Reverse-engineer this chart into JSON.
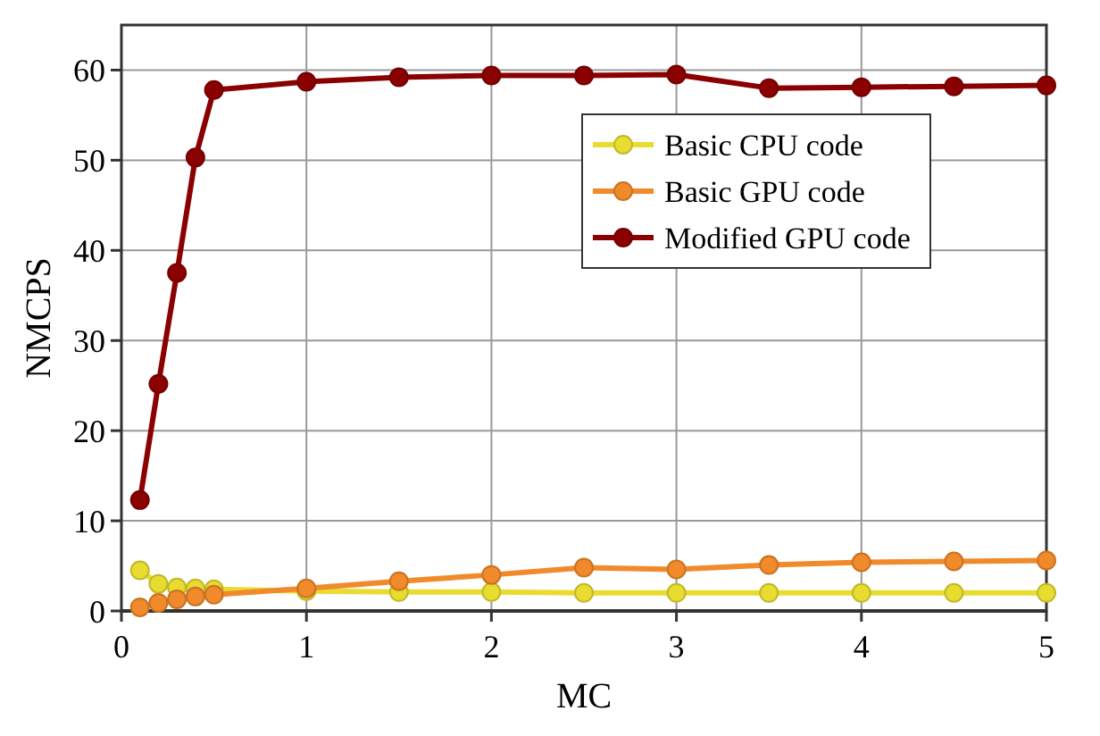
{
  "chart_data": {
    "type": "line",
    "xlabel": "MC",
    "ylabel": "NMCPS",
    "x": [
      0.1,
      0.2,
      0.3,
      0.4,
      0.5,
      1,
      1.5,
      2,
      2.5,
      3,
      3.5,
      4,
      4.5,
      5
    ],
    "series": [
      {
        "name": "Basic CPU code",
        "color": "#e8dc30",
        "values": [
          4.5,
          3.0,
          2.6,
          2.5,
          2.4,
          2.2,
          2.1,
          2.1,
          2.0,
          2.0,
          2.0,
          2.0,
          2.0,
          2.0
        ]
      },
      {
        "name": "Basic GPU code",
        "color": "#f08a2a",
        "values": [
          0.4,
          0.9,
          1.3,
          1.6,
          1.8,
          2.5,
          3.3,
          4.0,
          4.8,
          4.6,
          5.1,
          5.4,
          5.5,
          5.6
        ]
      },
      {
        "name": "Modified GPU code",
        "color": "#8b0000",
        "values": [
          12.3,
          25.2,
          37.5,
          50.3,
          57.8,
          58.7,
          59.2,
          59.4,
          59.4,
          59.5,
          58.0,
          58.1,
          58.2,
          58.3
        ]
      }
    ],
    "xlim": [
      0,
      5
    ],
    "xticks": [
      0,
      1,
      2,
      3,
      4,
      5
    ],
    "ylim": [
      0,
      65
    ],
    "yticks": [
      0,
      10,
      20,
      30,
      40,
      50,
      60
    ],
    "grid": true,
    "legend": "top right",
    "marker": "circle",
    "line_style": "solid"
  }
}
